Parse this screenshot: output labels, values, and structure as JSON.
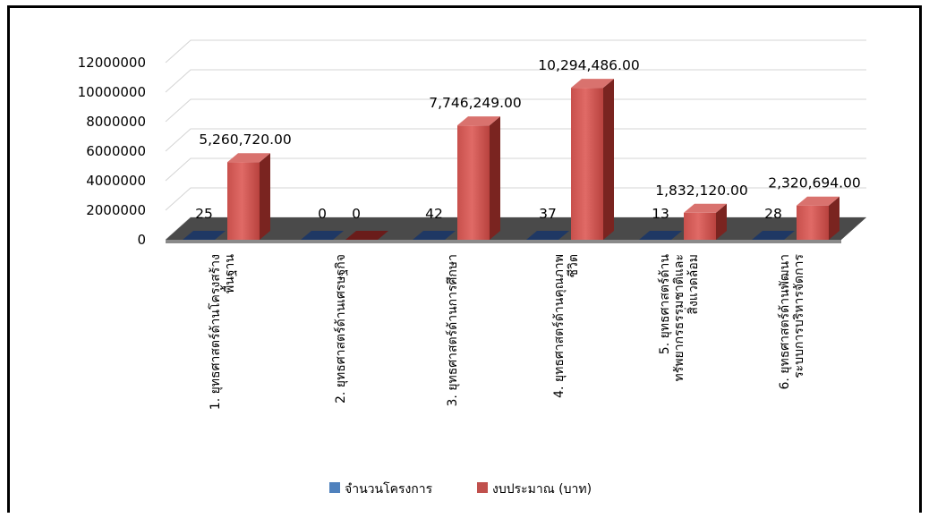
{
  "chart_data": {
    "type": "bar",
    "categories": [
      [
        "1. ยุทธศาสตร์ด้านโครงสร้าง",
        "พื้นฐาน"
      ],
      [
        "2. ยุทธศาสตร์ด้านเศรษฐกิจ"
      ],
      [
        "3. ยุทธศาสตร์ด้านการศึกษา"
      ],
      [
        "4. ยุทธศาสตร์ด้านคุณภาพ",
        "ชีวิต"
      ],
      [
        "5. ยุทธศาสตร์ด้าน",
        "ทรัพยากรธรรมชาติและ",
        "สิ่งแวดล้อม"
      ],
      [
        "6. ยุทธศาสตร์ด้านพัฒนา",
        "ระบบการบริหารจัดการ"
      ]
    ],
    "series": [
      {
        "name": "จำนวนโครงการ",
        "color": "#1F4E79",
        "values": [
          25,
          0,
          42,
          37,
          13,
          28
        ],
        "labels": [
          "25",
          "0",
          "42",
          "37",
          "13",
          "28"
        ]
      },
      {
        "name": "งบประมาณ (บาท)",
        "color": "#C0504D",
        "values": [
          5260720,
          0,
          7746249,
          10294486,
          1832120,
          2320694
        ],
        "labels": [
          "5,260,720.00",
          "0",
          "7,746,249.00",
          "10,294,486.00",
          "1,832,120.00",
          "2,320,694.00"
        ]
      }
    ],
    "yticks": [
      "0",
      "2000000",
      "4000000",
      "6000000",
      "8000000",
      "10000000",
      "12000000"
    ],
    "ylim": [
      0,
      12000000
    ],
    "grid": true,
    "legend_position": "bottom"
  }
}
